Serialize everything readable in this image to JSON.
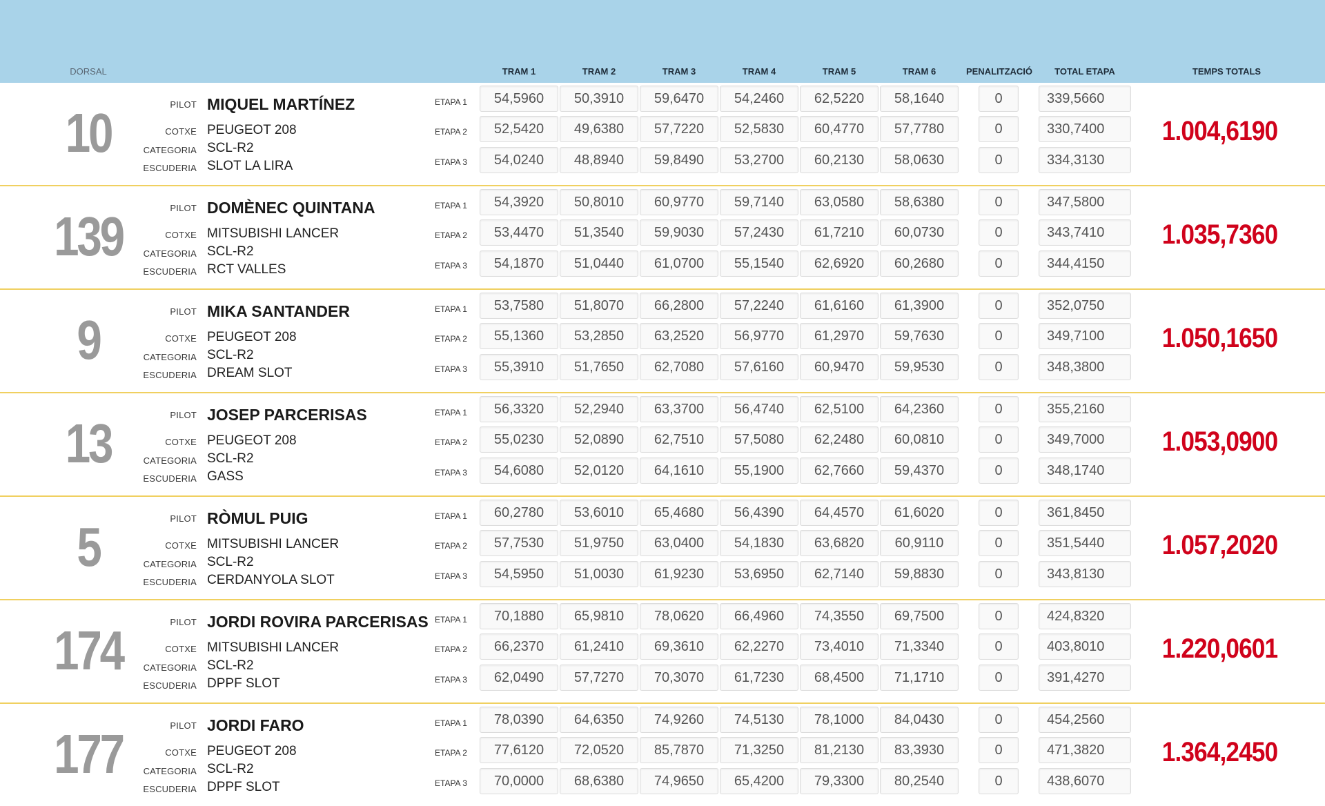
{
  "headers": {
    "dorsal": "DORSAL",
    "trams": [
      "TRAM 1",
      "TRAM 2",
      "TRAM 3",
      "TRAM 4",
      "TRAM 5",
      "TRAM 6"
    ],
    "penalitzacio": "PENALITZACIÓ",
    "total_etapa": "TOTAL ETAPA",
    "temps_totals": "TEMPS TOTALS"
  },
  "labels": {
    "pilot": "PILOT",
    "cotxe": "COTXE",
    "categoria": "CATEGORIA",
    "escuderia": "ESCUDERIA",
    "etapas": [
      "ETAPA 1",
      "ETAPA 2",
      "ETAPA 3"
    ]
  },
  "colors": {
    "header_band": "#a9d3e9",
    "dorsal_number": "#9a9a9a",
    "grand_total": "#d0021b",
    "row_separator": "#f0d060"
  },
  "entries": [
    {
      "dorsal": "10",
      "pilot": "MIQUEL MARTÍNEZ",
      "cotxe": "PEUGEOT 208",
      "categoria": "SCL-R2",
      "escuderia": "SLOT LA LIRA",
      "temps_totals": "1.004,6190",
      "etapas": [
        {
          "trams": [
            "54,5960",
            "50,3910",
            "59,6470",
            "54,2460",
            "62,5220",
            "58,1640"
          ],
          "penalitzacio": "0",
          "total": "339,5660"
        },
        {
          "trams": [
            "52,5420",
            "49,6380",
            "57,7220",
            "52,5830",
            "60,4770",
            "57,7780"
          ],
          "penalitzacio": "0",
          "total": "330,7400"
        },
        {
          "trams": [
            "54,0240",
            "48,8940",
            "59,8490",
            "53,2700",
            "60,2130",
            "58,0630"
          ],
          "penalitzacio": "0",
          "total": "334,3130"
        }
      ]
    },
    {
      "dorsal": "139",
      "pilot": "DOMÈNEC QUINTANA",
      "cotxe": "MITSUBISHI LANCER",
      "categoria": "SCL-R2",
      "escuderia": "RCT VALLES",
      "temps_totals": "1.035,7360",
      "etapas": [
        {
          "trams": [
            "54,3920",
            "50,8010",
            "60,9770",
            "59,7140",
            "63,0580",
            "58,6380"
          ],
          "penalitzacio": "0",
          "total": "347,5800"
        },
        {
          "trams": [
            "53,4470",
            "51,3540",
            "59,9030",
            "57,2430",
            "61,7210",
            "60,0730"
          ],
          "penalitzacio": "0",
          "total": "343,7410"
        },
        {
          "trams": [
            "54,1870",
            "51,0440",
            "61,0700",
            "55,1540",
            "62,6920",
            "60,2680"
          ],
          "penalitzacio": "0",
          "total": "344,4150"
        }
      ]
    },
    {
      "dorsal": "9",
      "pilot": "MIKA SANTANDER",
      "cotxe": "PEUGEOT 208",
      "categoria": "SCL-R2",
      "escuderia": "DREAM SLOT",
      "temps_totals": "1.050,1650",
      "etapas": [
        {
          "trams": [
            "53,7580",
            "51,8070",
            "66,2800",
            "57,2240",
            "61,6160",
            "61,3900"
          ],
          "penalitzacio": "0",
          "total": "352,0750"
        },
        {
          "trams": [
            "55,1360",
            "53,2850",
            "63,2520",
            "56,9770",
            "61,2970",
            "59,7630"
          ],
          "penalitzacio": "0",
          "total": "349,7100"
        },
        {
          "trams": [
            "55,3910",
            "51,7650",
            "62,7080",
            "57,6160",
            "60,9470",
            "59,9530"
          ],
          "penalitzacio": "0",
          "total": "348,3800"
        }
      ]
    },
    {
      "dorsal": "13",
      "pilot": "JOSEP PARCERISAS",
      "cotxe": "PEUGEOT 208",
      "categoria": "SCL-R2",
      "escuderia": "GASS",
      "temps_totals": "1.053,0900",
      "etapas": [
        {
          "trams": [
            "56,3320",
            "52,2940",
            "63,3700",
            "56,4740",
            "62,5100",
            "64,2360"
          ],
          "penalitzacio": "0",
          "total": "355,2160"
        },
        {
          "trams": [
            "55,0230",
            "52,0890",
            "62,7510",
            "57,5080",
            "62,2480",
            "60,0810"
          ],
          "penalitzacio": "0",
          "total": "349,7000"
        },
        {
          "trams": [
            "54,6080",
            "52,0120",
            "64,1610",
            "55,1900",
            "62,7660",
            "59,4370"
          ],
          "penalitzacio": "0",
          "total": "348,1740"
        }
      ]
    },
    {
      "dorsal": "5",
      "pilot": "RÒMUL PUIG",
      "cotxe": "MITSUBISHI LANCER",
      "categoria": "SCL-R2",
      "escuderia": "CERDANYOLA SLOT",
      "temps_totals": "1.057,2020",
      "etapas": [
        {
          "trams": [
            "60,2780",
            "53,6010",
            "65,4680",
            "56,4390",
            "64,4570",
            "61,6020"
          ],
          "penalitzacio": "0",
          "total": "361,8450"
        },
        {
          "trams": [
            "57,7530",
            "51,9750",
            "63,0400",
            "54,1830",
            "63,6820",
            "60,9110"
          ],
          "penalitzacio": "0",
          "total": "351,5440"
        },
        {
          "trams": [
            "54,5950",
            "51,0030",
            "61,9230",
            "53,6950",
            "62,7140",
            "59,8830"
          ],
          "penalitzacio": "0",
          "total": "343,8130"
        }
      ]
    },
    {
      "dorsal": "174",
      "pilot": "JORDI ROVIRA PARCERISAS",
      "cotxe": "MITSUBISHI LANCER",
      "categoria": "SCL-R2",
      "escuderia": "DPPF SLOT",
      "temps_totals": "1.220,0601",
      "etapas": [
        {
          "trams": [
            "70,1880",
            "65,9810",
            "78,0620",
            "66,4960",
            "74,3550",
            "69,7500"
          ],
          "penalitzacio": "0",
          "total": "424,8320"
        },
        {
          "trams": [
            "66,2370",
            "61,2410",
            "69,3610",
            "62,2270",
            "73,4010",
            "71,3340"
          ],
          "penalitzacio": "0",
          "total": "403,8010"
        },
        {
          "trams": [
            "62,0490",
            "57,7270",
            "70,3070",
            "61,7230",
            "68,4500",
            "71,1710"
          ],
          "penalitzacio": "0",
          "total": "391,4270"
        }
      ]
    },
    {
      "dorsal": "177",
      "pilot": "JORDI FARO",
      "cotxe": "PEUGEOT 208",
      "categoria": "SCL-R2",
      "escuderia": "DPPF SLOT",
      "temps_totals": "1.364,2450",
      "etapas": [
        {
          "trams": [
            "78,0390",
            "64,6350",
            "74,9260",
            "74,5130",
            "78,1000",
            "84,0430"
          ],
          "penalitzacio": "0",
          "total": "454,2560"
        },
        {
          "trams": [
            "77,6120",
            "72,0520",
            "85,7870",
            "71,3250",
            "81,2130",
            "83,3930"
          ],
          "penalitzacio": "0",
          "total": "471,3820"
        },
        {
          "trams": [
            "70,0000",
            "68,6380",
            "74,9650",
            "65,4200",
            "79,3300",
            "80,2540"
          ],
          "penalitzacio": "0",
          "total": "438,6070"
        }
      ]
    }
  ]
}
